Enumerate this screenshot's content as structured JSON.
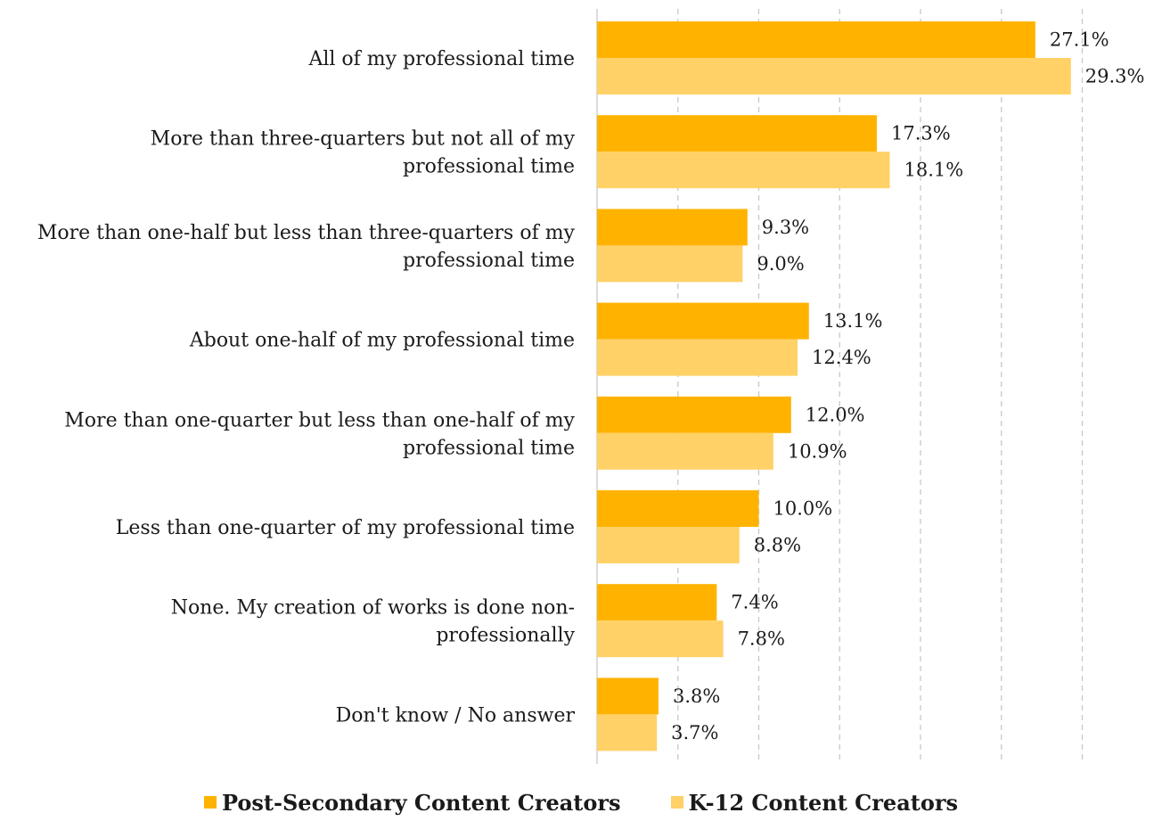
{
  "colors": {
    "post_secondary": "#FFB300",
    "k12": "#FFD166",
    "grid": "#c8c8c8"
  },
  "chart_data": {
    "type": "bar",
    "orientation": "horizontal",
    "title": "",
    "xlabel": "",
    "ylabel": "",
    "xlim": [
      0,
      30
    ],
    "grid": "vertical dashed",
    "legend_position": "bottom-center",
    "categories": [
      [
        "All of my professional time"
      ],
      [
        "More than three-quarters but not all of my",
        "professional time"
      ],
      [
        "More than one-half but less than three-quarters of my",
        "professional time"
      ],
      [
        "About one-half of my professional time"
      ],
      [
        "More than one-quarter but less than one-half of my",
        "professional time"
      ],
      [
        "Less than one-quarter of my professional time"
      ],
      [
        "None. My creation of works is done non-",
        "professionally"
      ],
      [
        "Don't know / No answer"
      ]
    ],
    "series": [
      {
        "name": "Post-Secondary Content Creators",
        "values": [
          27.1,
          17.3,
          9.3,
          13.1,
          12.0,
          10.0,
          7.4,
          3.8
        ],
        "labels": [
          "27.1%",
          "17.3%",
          "9.3%",
          "13.1%",
          "12.0%",
          "10.0%",
          "7.4%",
          "3.8%"
        ]
      },
      {
        "name": "K-12 Content Creators",
        "values": [
          29.3,
          18.1,
          9.0,
          12.4,
          10.9,
          8.8,
          7.8,
          3.7
        ],
        "labels": [
          "29.3%",
          "18.1%",
          "9.0%",
          "12.4%",
          "10.9%",
          "8.8%",
          "7.8%",
          "3.7%"
        ]
      }
    ]
  }
}
